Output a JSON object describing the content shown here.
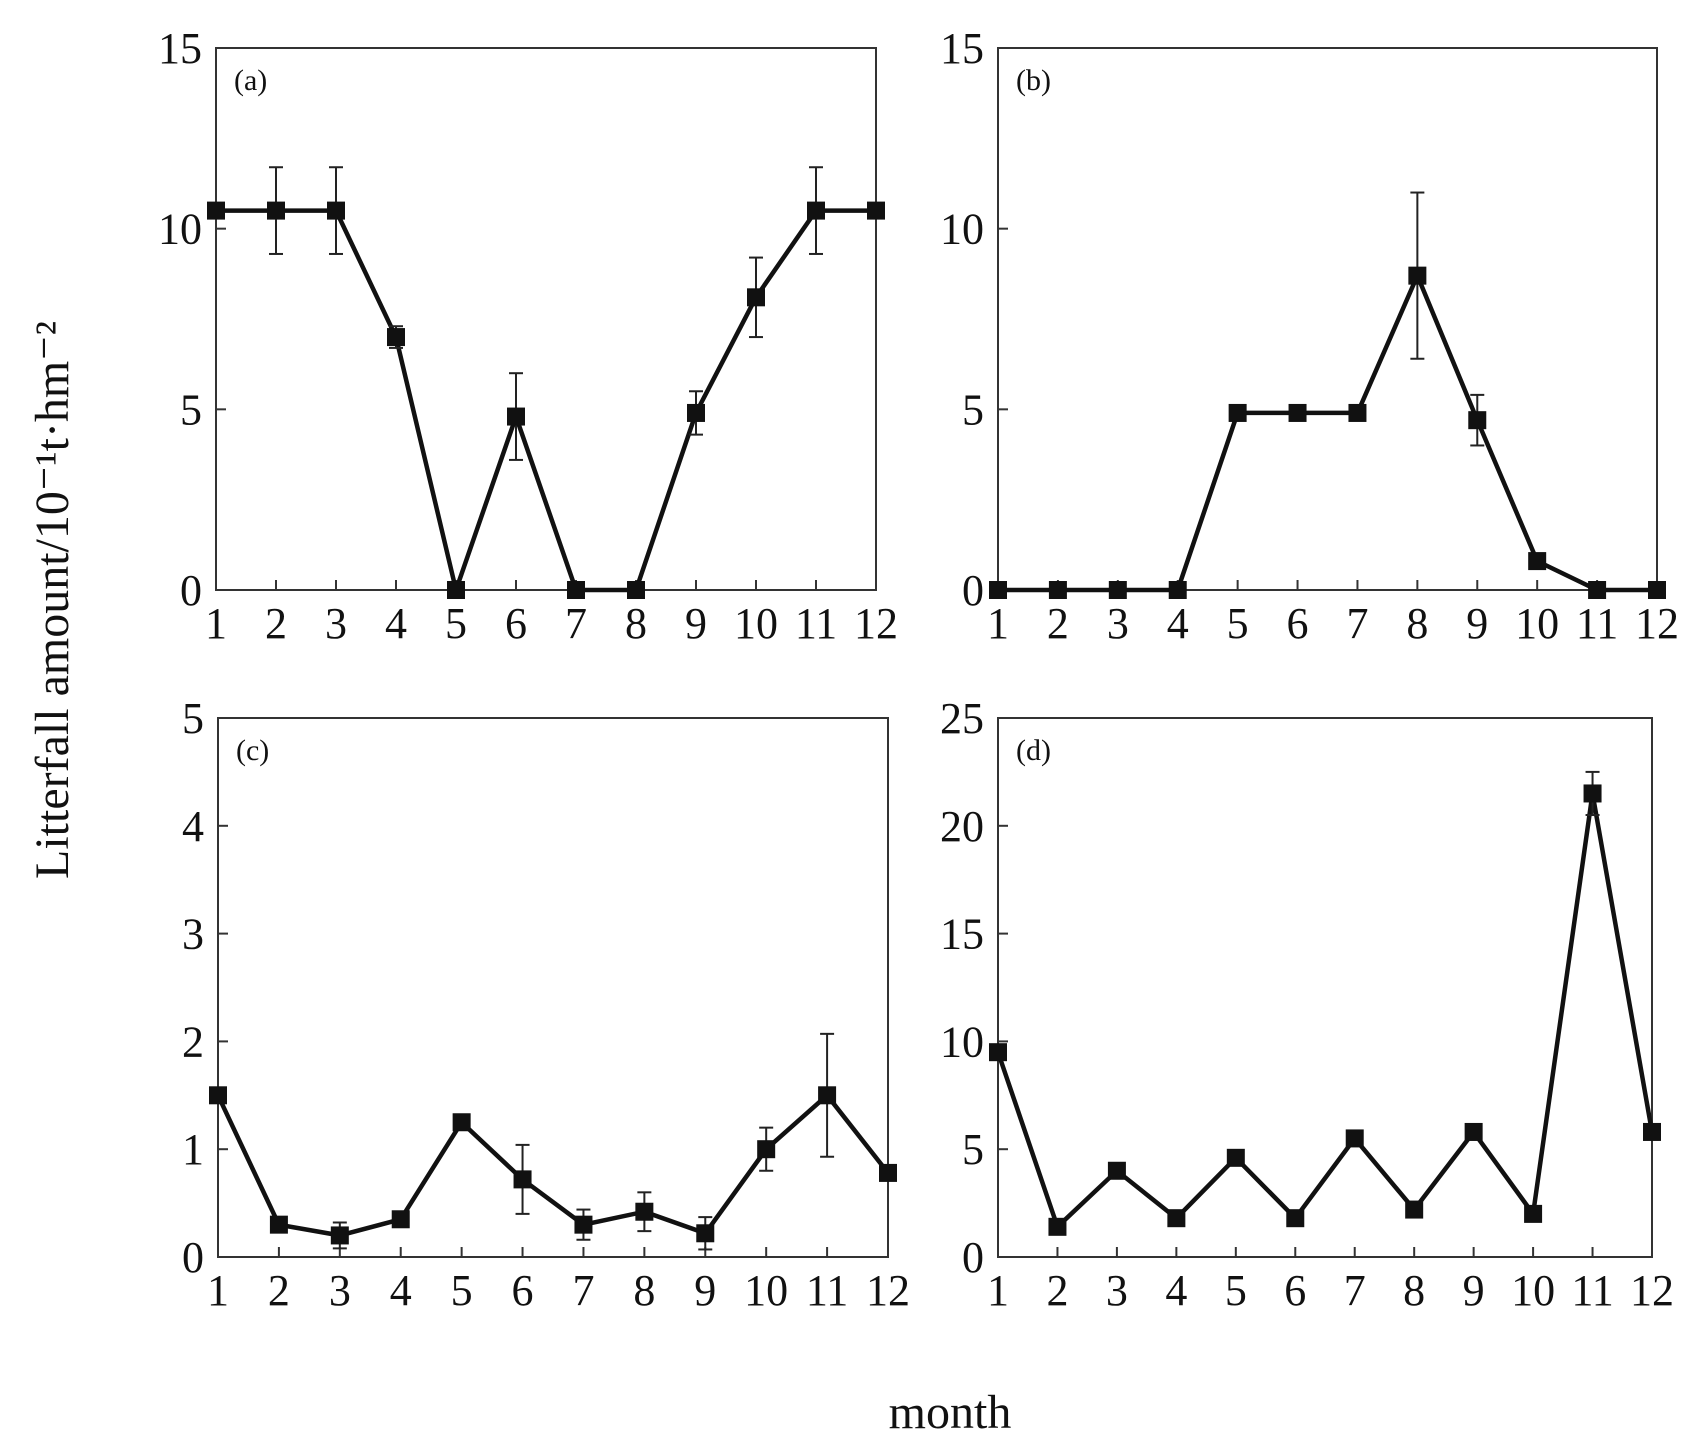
{
  "figure": {
    "ylabel": "Litterfall amount/10⁻¹t·hm⁻²",
    "xlabel": "month"
  },
  "chart_data": [
    {
      "type": "line",
      "panel_label": "(a)",
      "x": [
        1,
        2,
        3,
        4,
        5,
        6,
        7,
        8,
        9,
        10,
        11,
        12
      ],
      "x_tick_labels": [
        "1",
        "2",
        "3",
        "4",
        "5",
        "6",
        "7",
        "8",
        "9",
        "10",
        "11",
        "12"
      ],
      "y_tick_labels": [
        "0",
        "5",
        "10",
        "15"
      ],
      "y_ticks": [
        0,
        5,
        10,
        15
      ],
      "xlim": [
        1,
        12
      ],
      "ylim": [
        0,
        15
      ],
      "series": [
        {
          "values": [
            10.5,
            10.5,
            10.5,
            7.0,
            0.0,
            4.8,
            0.0,
            0.0,
            4.9,
            8.1,
            10.5,
            10.5
          ],
          "error": [
            null,
            1.2,
            1.2,
            0.3,
            null,
            1.2,
            null,
            null,
            0.6,
            1.1,
            1.2,
            null
          ]
        }
      ],
      "grid": false,
      "marker": "square"
    },
    {
      "type": "line",
      "panel_label": "(b)",
      "x": [
        1,
        2,
        3,
        4,
        5,
        6,
        7,
        8,
        9,
        10,
        11,
        12
      ],
      "x_tick_labels": [
        "1",
        "2",
        "3",
        "4",
        "5",
        "6",
        "7",
        "8",
        "9",
        "10",
        "11",
        "12"
      ],
      "y_tick_labels": [
        "0",
        "5",
        "10",
        "15"
      ],
      "y_ticks": [
        0,
        5,
        10,
        15
      ],
      "xlim": [
        1,
        12
      ],
      "ylim": [
        0,
        15
      ],
      "series": [
        {
          "values": [
            0.0,
            0.0,
            0.0,
            0.0,
            4.9,
            4.9,
            4.9,
            8.7,
            4.7,
            0.8,
            0.0,
            0.0
          ],
          "error": [
            null,
            null,
            null,
            null,
            null,
            null,
            null,
            2.3,
            0.7,
            null,
            null,
            null
          ]
        }
      ],
      "grid": false,
      "marker": "square"
    },
    {
      "type": "line",
      "panel_label": "(c)",
      "x": [
        1,
        2,
        3,
        4,
        5,
        6,
        7,
        8,
        9,
        10,
        11,
        12
      ],
      "x_tick_labels": [
        "1",
        "2",
        "3",
        "4",
        "5",
        "6",
        "7",
        "8",
        "9",
        "10",
        "11",
        "12"
      ],
      "y_tick_labels": [
        "0",
        "1",
        "2",
        "3",
        "4",
        "5"
      ],
      "y_ticks": [
        0,
        1,
        2,
        3,
        4,
        5
      ],
      "xlim": [
        1,
        12
      ],
      "ylim": [
        0,
        5
      ],
      "series": [
        {
          "values": [
            1.5,
            0.3,
            0.2,
            0.35,
            1.25,
            0.72,
            0.3,
            0.42,
            0.22,
            1.0,
            1.5,
            0.78
          ],
          "error": [
            null,
            null,
            0.12,
            null,
            null,
            0.32,
            0.14,
            0.18,
            0.15,
            0.2,
            0.57,
            null
          ]
        }
      ],
      "grid": false,
      "marker": "square"
    },
    {
      "type": "line",
      "panel_label": "(d)",
      "x": [
        1,
        2,
        3,
        4,
        5,
        6,
        7,
        8,
        9,
        10,
        11,
        12
      ],
      "x_tick_labels": [
        "1",
        "2",
        "3",
        "4",
        "5",
        "6",
        "7",
        "8",
        "9",
        "10",
        "11",
        "12"
      ],
      "y_tick_labels": [
        "0",
        "5",
        "10",
        "15",
        "20",
        "25"
      ],
      "y_ticks": [
        0,
        5,
        10,
        15,
        20,
        25
      ],
      "xlim": [
        1,
        12
      ],
      "ylim": [
        0,
        25
      ],
      "series": [
        {
          "values": [
            9.5,
            1.4,
            4.0,
            1.8,
            4.6,
            1.8,
            5.5,
            2.2,
            5.8,
            2.0,
            21.5,
            5.8
          ],
          "error": [
            null,
            null,
            null,
            null,
            null,
            null,
            null,
            null,
            null,
            null,
            1.0,
            null
          ]
        }
      ],
      "grid": false,
      "marker": "square"
    }
  ]
}
